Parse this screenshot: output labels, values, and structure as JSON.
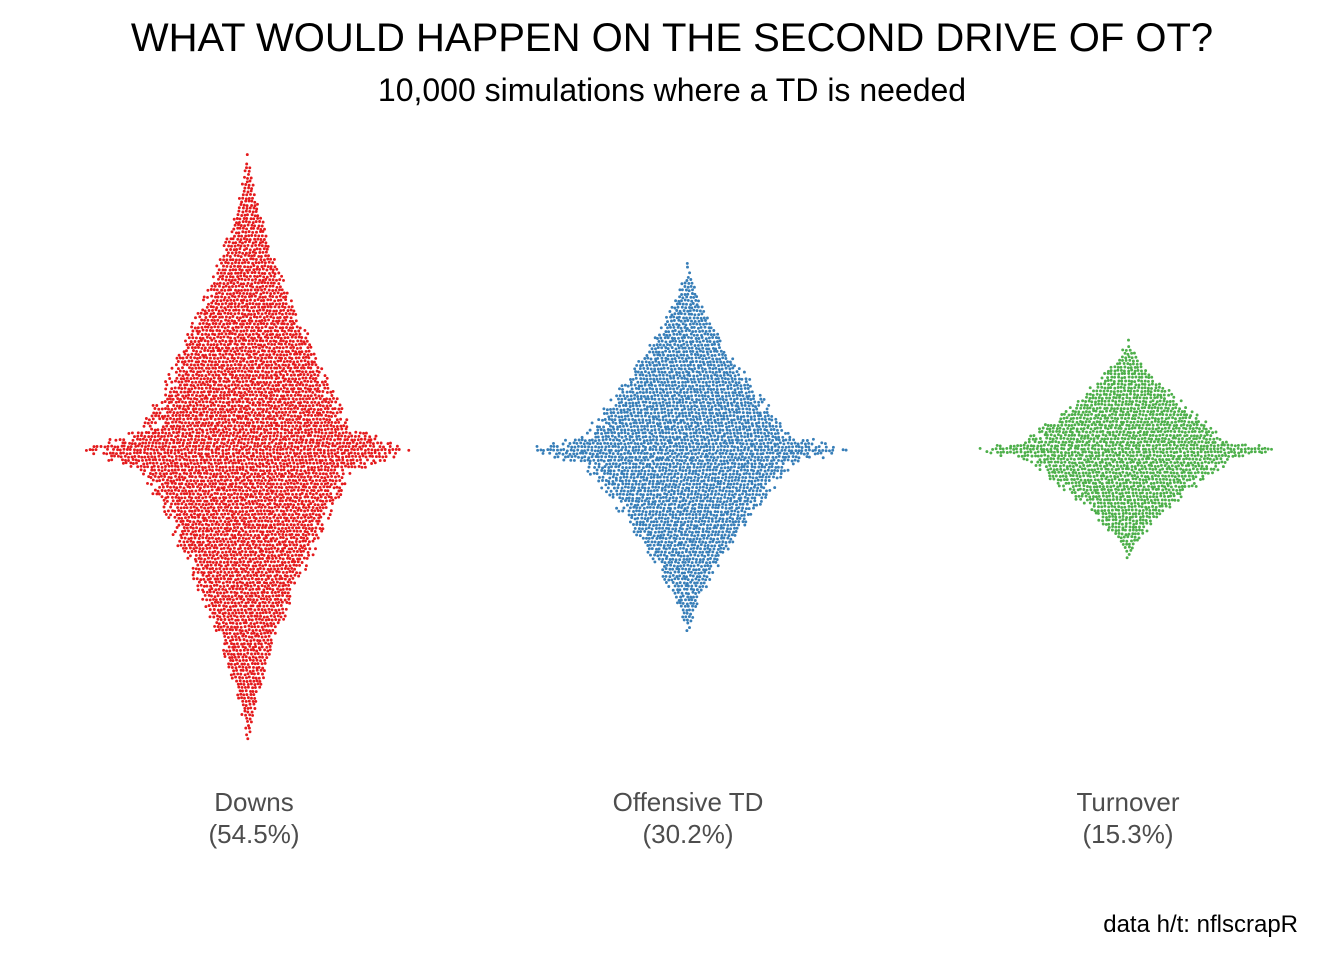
{
  "title": "WHAT WOULD HAPPEN ON THE SECOND DRIVE OF OT?",
  "subtitle": "10,000 simulations where a TD is needed",
  "caption": "data h/t: nflscrapR",
  "chart_data": {
    "type": "scatter",
    "style": "beeswarm",
    "total_simulations": 10000,
    "categories": [
      {
        "name": "Downs",
        "pct_label": "(54.5%)",
        "share": 0.545,
        "count": 5450,
        "color": "#e41a1c"
      },
      {
        "name": "Offensive TD",
        "pct_label": "(30.2%)",
        "share": 0.302,
        "count": 3020,
        "color": "#377eb8"
      },
      {
        "name": "Turnover",
        "pct_label": "(15.3%)",
        "share": 0.153,
        "count": 1530,
        "color": "#4daf4a"
      }
    ],
    "grid": false,
    "legend": "none"
  }
}
